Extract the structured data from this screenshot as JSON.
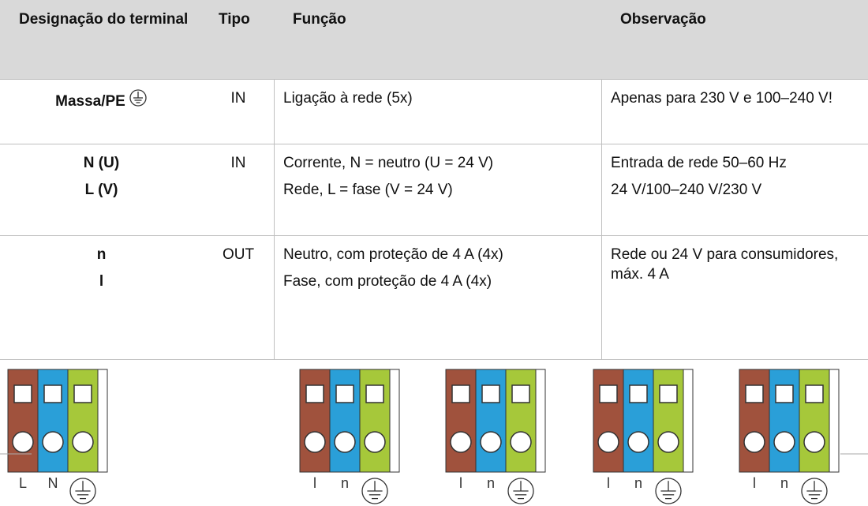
{
  "table": {
    "header": [
      "Designação do terminal",
      "Tipo",
      "Função",
      "Observação"
    ],
    "rows": [
      [
        [
          "Massa/PE"
        ],
        [
          "IN"
        ],
        [
          "Ligação à rede (5x)"
        ],
        [
          "Apenas para 230 V e 100–240 V!"
        ]
      ],
      [
        [
          "N (U)",
          "L (V)"
        ],
        [
          "IN"
        ],
        [
          "Corrente, N = neutro (U = 24 V)",
          "Rede, L = fase (V = 24 V)"
        ],
        [
          "Entrada de rede 50–60 Hz",
          "24 V/100–240 V/230 V"
        ]
      ],
      [
        [
          "n",
          "l"
        ],
        [
          "OUT"
        ],
        [
          "Neutro, com proteção de 4 A (4x)",
          "Fase, com proteção de 4 A (4x)"
        ],
        [
          "Rede ou 24 V para consumidores, máx. 4 A"
        ]
      ]
    ]
  },
  "connectors": [
    {
      "labels": [
        "L",
        "N"
      ]
    },
    {
      "labels": [
        "l",
        "n"
      ]
    },
    {
      "labels": [
        "l",
        "n"
      ]
    },
    {
      "labels": [
        "l",
        "n"
      ]
    },
    {
      "labels": [
        "l",
        "n"
      ]
    }
  ]
}
